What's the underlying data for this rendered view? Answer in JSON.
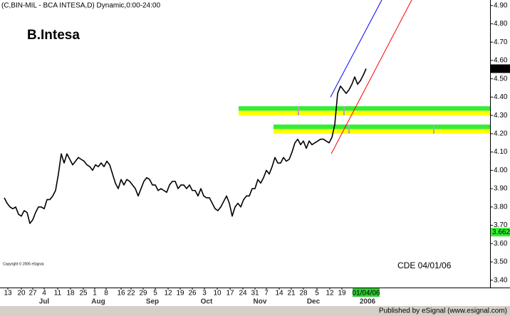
{
  "chart_data": {
    "type": "line",
    "header": "(C,BIN-MIL - BCA INTESA,D) Dynamic,0:00-24:00",
    "title": "B.Intesa",
    "annotation": "CDE 04/01/06",
    "copyright": "Copyright © 2005 eSignal.",
    "footer": "Published by eSignal (www.esignal.com)",
    "series": [
      {
        "name": "BCA INTESA",
        "color": "#000000",
        "values": [
          3.85,
          3.82,
          3.8,
          3.79,
          3.8,
          3.76,
          3.75,
          3.78,
          3.77,
          3.71,
          3.73,
          3.77,
          3.8,
          3.8,
          3.79,
          3.84,
          3.84,
          3.86,
          3.89,
          3.98,
          4.09,
          4.04,
          4.09,
          4.06,
          4.03,
          4.05,
          4.07,
          4.06,
          4.05,
          4.03,
          4.02,
          4.0,
          4.03,
          4.02,
          4.04,
          4.02,
          4.05,
          4.03,
          3.98,
          3.93,
          3.9,
          3.95,
          3.92,
          3.95,
          3.94,
          3.92,
          3.9,
          3.86,
          3.9,
          3.94,
          3.96,
          3.95,
          3.92,
          3.92,
          3.89,
          3.9,
          3.89,
          3.88,
          3.92,
          3.94,
          3.94,
          3.9,
          3.92,
          3.92,
          3.9,
          3.92,
          3.89,
          3.89,
          3.86,
          3.9,
          3.86,
          3.85,
          3.85,
          3.82,
          3.79,
          3.78,
          3.8,
          3.83,
          3.86,
          3.82,
          3.75,
          3.8,
          3.82,
          3.8,
          3.84,
          3.86,
          3.86,
          3.9,
          3.9,
          3.95,
          3.93,
          3.96,
          4.0,
          3.98,
          4.02,
          4.07,
          4.04,
          4.04,
          4.07,
          4.05,
          4.06,
          4.1,
          4.15,
          4.17,
          4.14,
          4.16,
          4.12,
          4.16,
          4.14,
          4.15,
          4.16,
          4.17,
          4.17,
          4.16,
          4.15,
          4.18,
          4.25,
          4.42,
          4.46,
          4.44,
          4.42,
          4.44,
          4.47,
          4.51,
          4.47,
          4.49,
          4.52,
          4.555
        ]
      }
    ],
    "xlim": [
      -1.5,
      170.5
    ],
    "ylim": [
      3.36,
      4.93
    ],
    "yticks": [
      {
        "value": 3.4,
        "label": "3.40"
      },
      {
        "value": 3.5,
        "label": "3.50"
      },
      {
        "value": 3.6,
        "label": "3.60"
      },
      {
        "value": 3.7,
        "label": "3.70"
      },
      {
        "value": 3.8,
        "label": "3.80"
      },
      {
        "value": 3.9,
        "label": "3.90"
      },
      {
        "value": 4.0,
        "label": "4.00"
      },
      {
        "value": 4.1,
        "label": "4.10"
      },
      {
        "value": 4.2,
        "label": "4.20"
      },
      {
        "value": 4.3,
        "label": "4.30"
      },
      {
        "value": 4.4,
        "label": "4.40"
      },
      {
        "value": 4.5,
        "label": "4.50"
      },
      {
        "value": 4.6,
        "label": "4.60"
      },
      {
        "value": 4.7,
        "label": "4.70"
      },
      {
        "value": 4.8,
        "label": "4.80"
      },
      {
        "value": 4.9,
        "label": "4.90"
      }
    ],
    "xticks": [
      {
        "value": 1.25,
        "label": "13"
      },
      {
        "value": 6,
        "label": "20"
      },
      {
        "value": 10,
        "label": "27"
      },
      {
        "value": 14,
        "label": "4"
      },
      {
        "value": 18.75,
        "label": "11"
      },
      {
        "value": 23.25,
        "label": "18"
      },
      {
        "value": 27.75,
        "label": "25"
      },
      {
        "value": 31.75,
        "label": "1"
      },
      {
        "value": 35.75,
        "label": "8"
      },
      {
        "value": 41,
        "label": "16"
      },
      {
        "value": 44.5,
        "label": "22"
      },
      {
        "value": 48.75,
        "label": "29"
      },
      {
        "value": 53,
        "label": "5"
      },
      {
        "value": 57.5,
        "label": "12"
      },
      {
        "value": 61.75,
        "label": "19"
      },
      {
        "value": 66,
        "label": "26"
      },
      {
        "value": 70.25,
        "label": "3"
      },
      {
        "value": 74.75,
        "label": "10"
      },
      {
        "value": 79.25,
        "label": "17"
      },
      {
        "value": 83.75,
        "label": "24"
      },
      {
        "value": 88,
        "label": "31"
      },
      {
        "value": 92,
        "label": "7"
      },
      {
        "value": 96.5,
        "label": "14"
      },
      {
        "value": 100.75,
        "label": "21"
      },
      {
        "value": 105,
        "label": "28"
      },
      {
        "value": 109.75,
        "label": "5"
      },
      {
        "value": 114.25,
        "label": "12"
      },
      {
        "value": 118.5,
        "label": "19"
      },
      {
        "value": 127,
        "label": "01/04/06",
        "highlight": "#33cc33"
      }
    ],
    "month_labels": [
      {
        "value": 14,
        "label": "Jul"
      },
      {
        "value": 33,
        "label": "Aug"
      },
      {
        "value": 52,
        "label": "Sep"
      },
      {
        "value": 71,
        "label": "Oct"
      },
      {
        "value": 89.75,
        "label": "Nov"
      },
      {
        "value": 108.5,
        "label": "Dec"
      },
      {
        "value": 127.5,
        "label": "2006"
      }
    ],
    "zones": [
      {
        "x_start": 82.25,
        "top": 4.35,
        "mid": 4.325,
        "bottom": 4.3,
        "markers_x": [
          103.25,
          119.25
        ]
      },
      {
        "x_start": 94.5,
        "top": 4.25,
        "mid": 4.225,
        "bottom": 4.2,
        "markers_x": [
          121,
          150.75
        ]
      }
    ],
    "zone_colors": [
      "#33ee33",
      "#ffff00"
    ],
    "trend_lines": [
      {
        "color": "#0000ff",
        "x": [
          114.5,
          132.5
        ],
        "y": [
          4.4,
          4.93
        ]
      },
      {
        "color": "#ff0000",
        "x": [
          114.75,
          143
        ],
        "y": [
          4.09,
          4.93
        ]
      }
    ],
    "price_markers": [
      {
        "value": 4.555,
        "color": "#000000",
        "text_color": "#ffffff"
      },
      {
        "value": 3.6625,
        "color": "#33ee33",
        "text_color": "#000000"
      }
    ]
  }
}
